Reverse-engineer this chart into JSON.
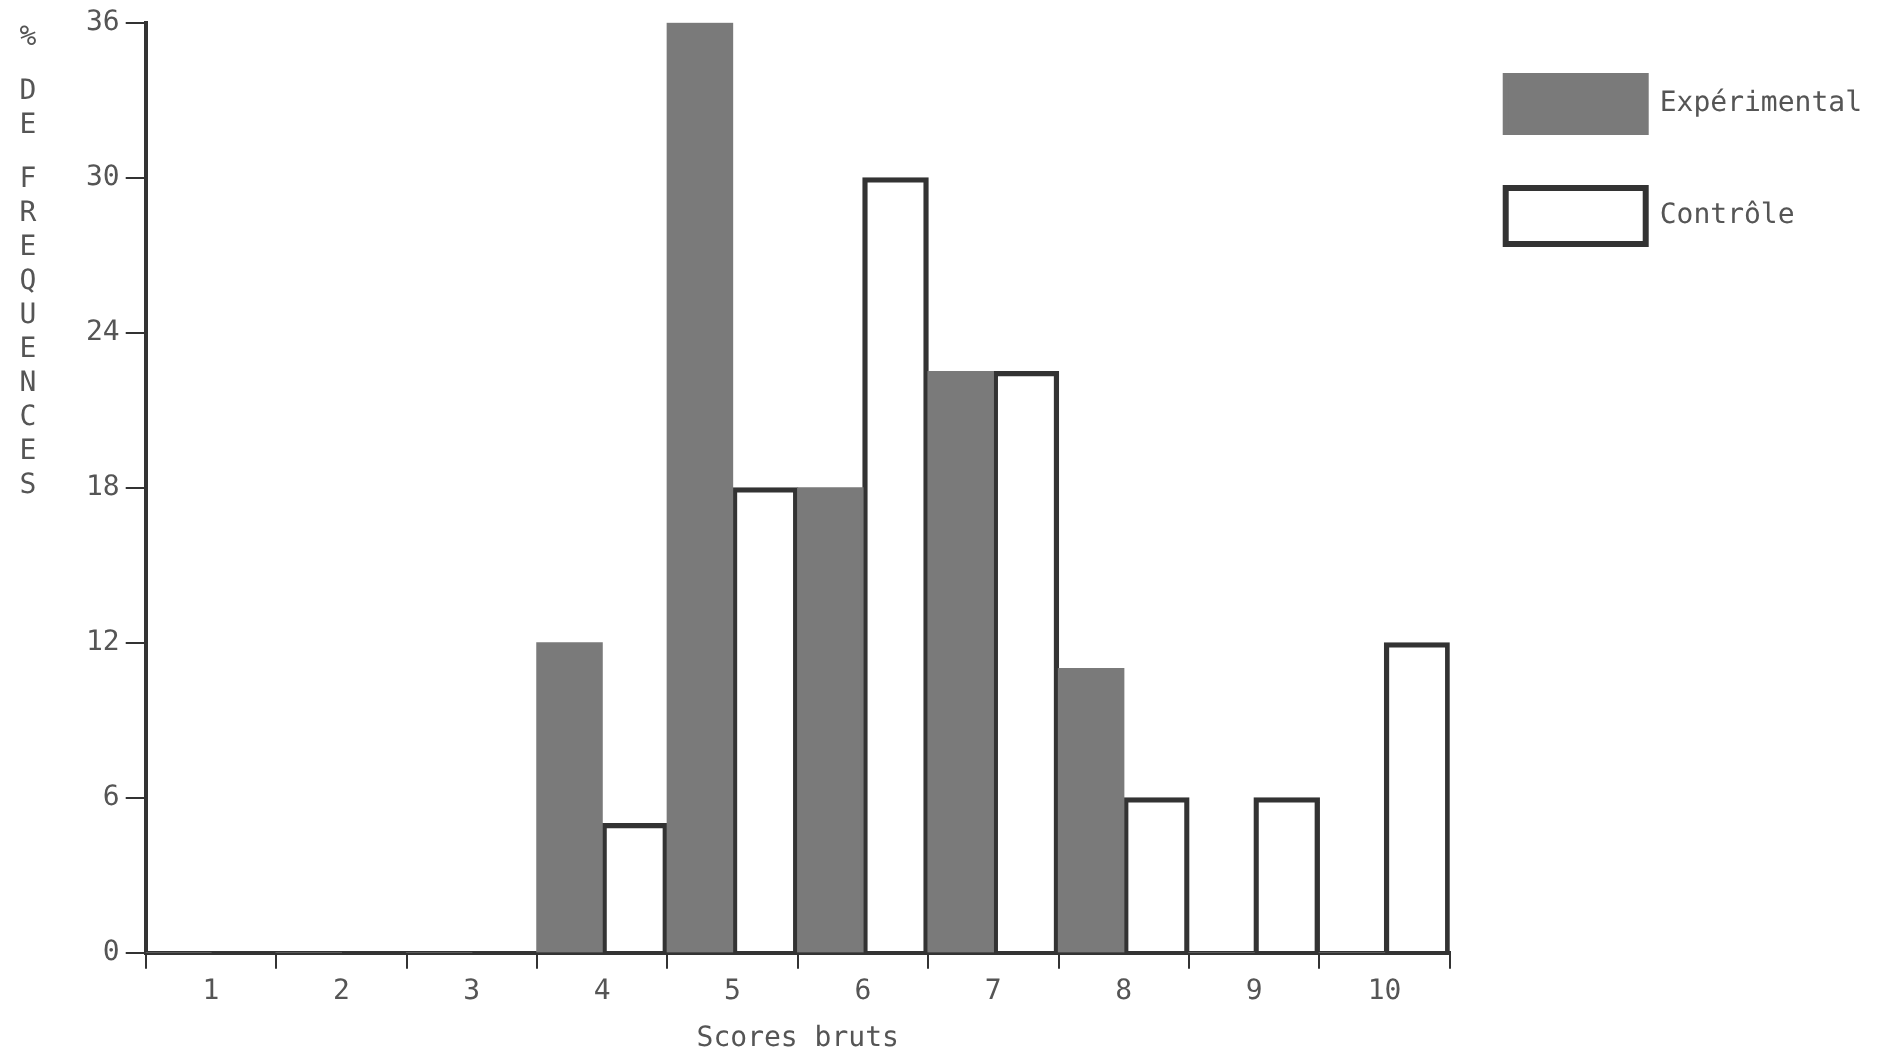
{
  "chart_data": {
    "type": "bar",
    "xlabel": "Scores bruts",
    "ylabel": "% DE FREQUENCES",
    "categories": [
      "1",
      "2",
      "3",
      "4",
      "5",
      "6",
      "7",
      "8",
      "9",
      "10"
    ],
    "series": [
      {
        "name": "Expérimental",
        "color": "#7a7a7a",
        "values": [
          0,
          0,
          0,
          12,
          36,
          18,
          22.5,
          11,
          0,
          0
        ]
      },
      {
        "name": "Contrôle",
        "color": "#333333",
        "values": [
          0,
          0,
          0,
          5,
          18,
          30,
          22.5,
          6,
          6,
          12
        ]
      }
    ],
    "ylim": [
      0,
      36
    ],
    "yticks": [
      0,
      6,
      12,
      18,
      24,
      30,
      36
    ],
    "grid": false,
    "legend": "top right"
  }
}
